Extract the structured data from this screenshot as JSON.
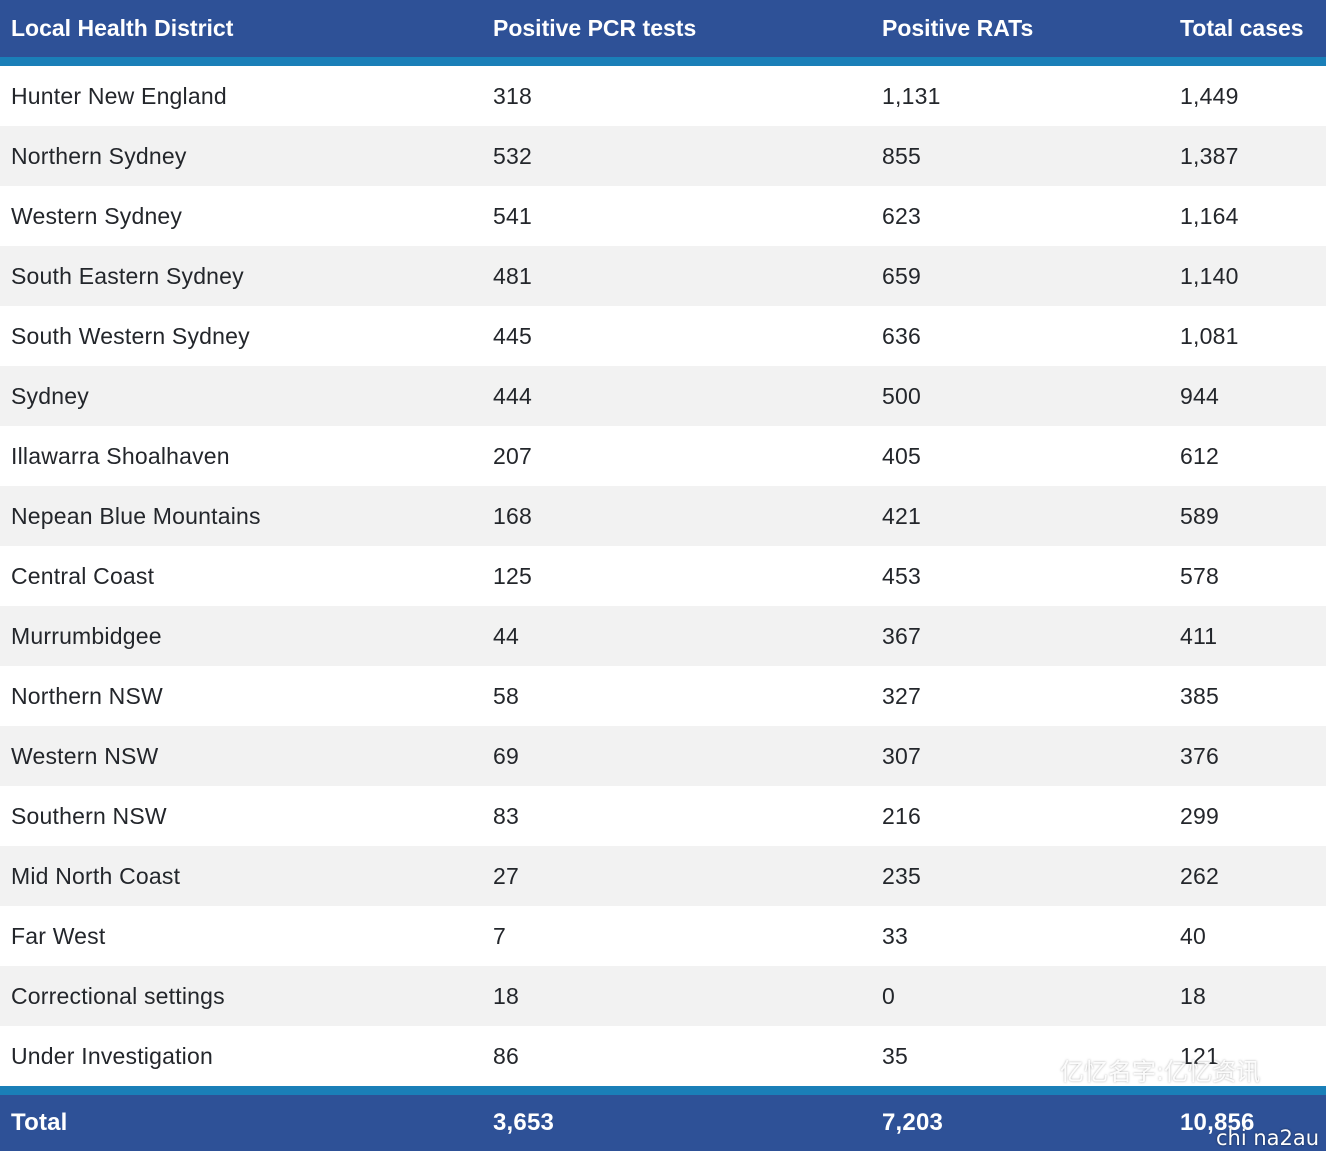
{
  "table": {
    "headers": [
      "Local Health District",
      "Positive PCR tests",
      "Positive RATs",
      "Total cases"
    ],
    "rows": [
      [
        "Hunter New England",
        "318",
        "1,131",
        "1,449"
      ],
      [
        "Northern Sydney",
        "532",
        "855",
        "1,387"
      ],
      [
        "Western Sydney",
        "541",
        "623",
        "1,164"
      ],
      [
        "South Eastern Sydney",
        "481",
        "659",
        "1,140"
      ],
      [
        "South Western Sydney",
        "445",
        "636",
        "1,081"
      ],
      [
        "Sydney",
        "444",
        "500",
        "944"
      ],
      [
        "Illawarra Shoalhaven",
        "207",
        "405",
        "612"
      ],
      [
        "Nepean Blue Mountains",
        "168",
        "421",
        "589"
      ],
      [
        "Central Coast",
        "125",
        "453",
        "578"
      ],
      [
        "Murrumbidgee",
        "44",
        "367",
        "411"
      ],
      [
        "Northern NSW",
        "58",
        "327",
        "385"
      ],
      [
        "Western NSW",
        "69",
        "307",
        "376"
      ],
      [
        "Southern NSW",
        "83",
        "216",
        "299"
      ],
      [
        "Mid North Coast",
        "27",
        "235",
        "262"
      ],
      [
        "Far West",
        "7",
        "33",
        "40"
      ],
      [
        "Correctional settings",
        "18",
        "0",
        "18"
      ],
      [
        "Under Investigation",
        "86",
        "35",
        "121"
      ]
    ],
    "total": [
      "Total",
      "3,653",
      "7,203",
      "10,856"
    ]
  },
  "watermarks": {
    "chinese": "亿忆名字:亿忆资讯",
    "latin": "chi na2au"
  },
  "colors": {
    "header_bg": "#2e5197",
    "accent_stripe": "#1a7fb8",
    "row_alt": "#f2f2f2"
  }
}
